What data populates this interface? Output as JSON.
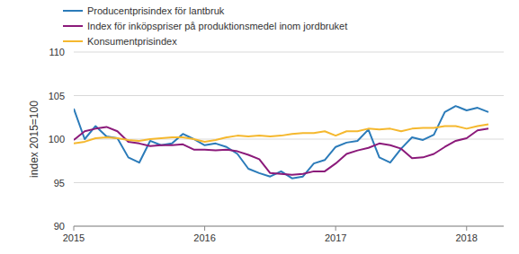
{
  "chart_data": {
    "type": "line",
    "y_label": "index 2015=100",
    "categories": [
      "2015",
      null,
      null,
      null,
      null,
      null,
      null,
      null,
      null,
      null,
      null,
      null,
      "2016",
      null,
      null,
      null,
      null,
      null,
      null,
      null,
      null,
      null,
      null,
      null,
      "2017",
      null,
      null,
      null,
      null,
      null,
      null,
      null,
      null,
      null,
      null,
      null,
      "2018",
      null,
      null
    ],
    "series": [
      {
        "name": "Producentprisindex för lantbruk",
        "color": "#2b7bb9",
        "values": [
          103.5,
          100.0,
          101.5,
          100.3,
          100.1,
          97.9,
          97.3,
          99.8,
          99.3,
          99.5,
          100.6,
          100.0,
          99.3,
          99.5,
          99.1,
          98.3,
          96.6,
          96.1,
          95.7,
          96.3,
          95.5,
          95.7,
          97.2,
          97.6,
          99.1,
          99.6,
          99.8,
          101.1,
          97.9,
          97.3,
          98.9,
          100.2,
          99.9,
          100.5,
          103.1,
          103.8,
          103.3,
          103.6,
          103.1
        ]
      },
      {
        "name": "Index för inköpspriser på produktionsmedel inom jordbruket",
        "color": "#8b1a7a",
        "values": [
          99.9,
          100.9,
          101.2,
          101.4,
          100.9,
          99.7,
          99.5,
          99.2,
          99.3,
          99.3,
          99.4,
          98.8,
          98.8,
          98.7,
          98.8,
          98.6,
          98.2,
          97.7,
          96.1,
          96.0,
          95.9,
          96.0,
          96.3,
          96.3,
          97.2,
          98.3,
          98.7,
          99.0,
          99.5,
          99.3,
          98.9,
          97.8,
          97.9,
          98.3,
          99.1,
          99.8,
          100.1,
          101.0,
          101.2
        ]
      },
      {
        "name": "Konsumentprisindex",
        "color": "#f5b82e",
        "values": [
          99.5,
          99.7,
          100.1,
          100.2,
          100.1,
          99.9,
          99.8,
          100.0,
          100.1,
          100.2,
          100.2,
          100.0,
          99.7,
          99.9,
          100.2,
          100.4,
          100.3,
          100.4,
          100.3,
          100.4,
          100.6,
          100.7,
          100.7,
          100.9,
          100.4,
          100.9,
          100.9,
          101.2,
          101.1,
          101.2,
          100.9,
          101.2,
          101.3,
          101.3,
          101.5,
          101.5,
          101.2,
          101.5,
          101.7
        ]
      }
    ],
    "ylim": [
      90,
      110
    ],
    "yticks": [
      90,
      95,
      100,
      105,
      110
    ],
    "grid": true,
    "legend": "upper left"
  }
}
